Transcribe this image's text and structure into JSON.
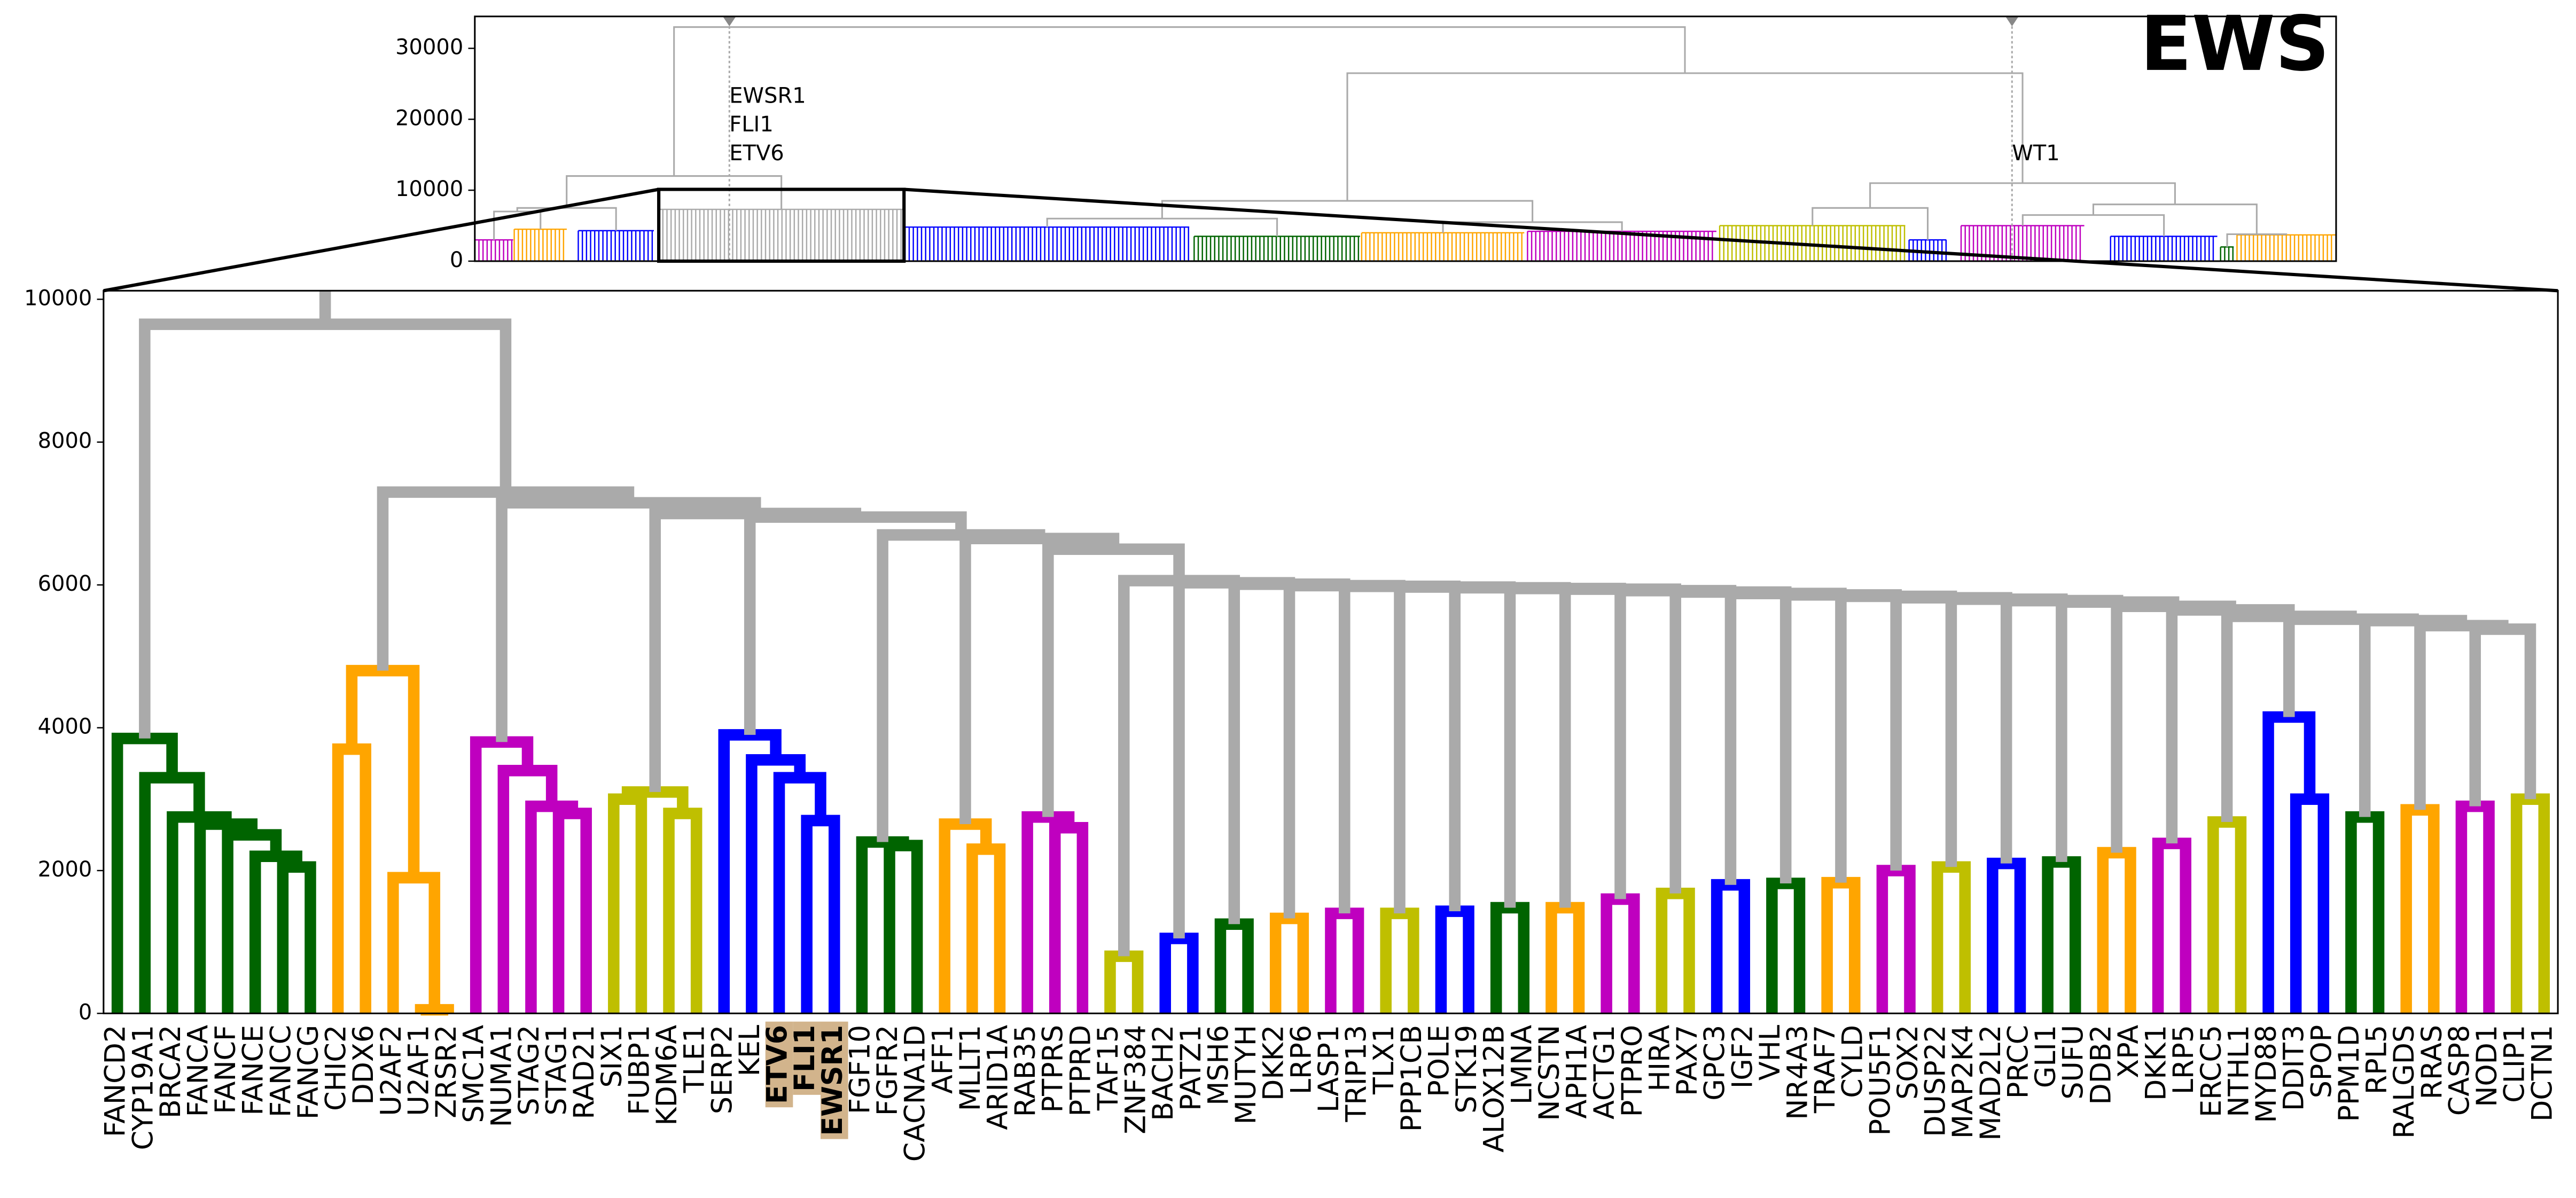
{
  "chart_data": [
    {
      "type": "dendrogram",
      "title": "EWS",
      "ylim": [
        0,
        34500
      ],
      "yticks": [
        0,
        10000,
        20000,
        30000
      ],
      "xlim": [
        0,
        340
      ],
      "link_color": "#aaaaaa",
      "blocks": [
        [
          [
            0,
            7
          ],
          3000,
          "#bf00bf"
        ],
        [
          [
            7.2,
            16.8
          ],
          4500,
          "#ffa500"
        ],
        [
          [
            18.9,
            32.7
          ],
          4300,
          "#0000ff"
        ],
        [
          [
            33.6,
            78.4
          ],
          7300,
          "#aaaaaa"
        ],
        [
          [
            78.6,
            130.5
          ],
          4800,
          "#0000ff"
        ],
        [
          [
            131.4,
            161.7
          ],
          3500,
          "#006400"
        ],
        [
          [
            162,
            191.7
          ],
          4000,
          "#ffa500"
        ],
        [
          [
            192.3,
            226.8
          ],
          4200,
          "#bf00bf"
        ],
        [
          [
            227.4,
            261.3
          ],
          5000,
          "#bfbf00"
        ],
        [
          [
            262,
            268.8
          ],
          3000,
          "#0000ff"
        ],
        [
          [
            271.5,
            294
          ],
          5000,
          "#bf00bf"
        ],
        [
          [
            298.8,
            318.3
          ],
          3500,
          "#0000ff"
        ],
        [
          [
            318.9,
            321.3
          ],
          2000,
          "#006400"
        ],
        [
          [
            321.9,
            339.9
          ],
          3700,
          "#ffa500"
        ]
      ],
      "merges": [
        [
          0,
          1,
          7000
        ],
        [
          14,
          2,
          7500
        ],
        [
          15,
          3,
          12000
        ],
        [
          4,
          5,
          6000
        ],
        [
          6,
          7,
          5500
        ],
        [
          17,
          18,
          8500
        ],
        [
          8,
          9,
          7500
        ],
        [
          10,
          11,
          6500
        ],
        [
          12,
          13,
          3800
        ],
        [
          21,
          22,
          8000
        ],
        [
          20,
          23,
          11000
        ],
        [
          19,
          24,
          26500
        ],
        [
          16,
          25,
          33000
        ]
      ],
      "markers": [
        {
          "x": 46.5,
          "labels": [
            "EWSR1",
            "FLI1",
            "ETV6"
          ]
        },
        {
          "x": 280.8,
          "labels": [
            "WT1"
          ]
        }
      ],
      "zoom_x": [
        33.6,
        78.4
      ]
    },
    {
      "type": "dendrogram",
      "ylim": [
        0,
        10120
      ],
      "yticks": [
        0,
        2000,
        4000,
        6000,
        8000,
        10000
      ],
      "leaves": [
        "FANCD2",
        "CYP19A1",
        "BRCA2",
        "FANCA",
        "FANCF",
        "FANCE",
        "FANCC",
        "FANCG",
        "CHIC2",
        "DDX6",
        "U2AF2",
        "U2AF1",
        "ZRSR2",
        "SMC1A",
        "NUMA1",
        "STAG2",
        "STAG1",
        "RAD21",
        "SIX1",
        "FUBP1",
        "KDM6A",
        "TLE1",
        "SERP2",
        "KEL",
        "ETV6",
        "FLI1",
        "EWSR1",
        "FGF10",
        "FGFR2",
        "CACNA1D",
        "AFF1",
        "MLLT1",
        "ARID1A",
        "RAB35",
        "PTPRS",
        "PTPRD",
        "TAF15",
        "ZNF384",
        "BACH2",
        "PATZ1",
        "MSH6",
        "MUTYH",
        "DKK2",
        "LRP6",
        "LASP1",
        "TRIP13",
        "TLX1",
        "PPP1CB",
        "POLE",
        "STK19",
        "ALOX12B",
        "LMNA",
        "NCSTN",
        "APH1A",
        "ACTG1",
        "PTPRO",
        "HIRA",
        "PAX7",
        "GPC3",
        "IGF2",
        "VHL",
        "NR4A3",
        "TRAF7",
        "CYLD",
        "POU5F1",
        "SOX2",
        "DUSP22",
        "MAP2K4",
        "MAD2L2",
        "PRCC",
        "GLI1",
        "SUFU",
        "DDB2",
        "XPA",
        "DKK1",
        "LRP5",
        "ERCC5",
        "NTHL1",
        "MYD88",
        "DDIT3",
        "SPOP",
        "PPM1D",
        "RPL5",
        "RALGDS",
        "RRAS",
        "CASP8",
        "NOD1",
        "CLIP1",
        "DCTN1"
      ],
      "highlight": {
        "leaves": [
          24,
          25,
          26
        ],
        "color": "#d2b48c"
      },
      "merges": [
        [
          6,
          7,
          2050,
          "#006400"
        ],
        [
          5,
          89,
          2200,
          "#006400"
        ],
        [
          4,
          90,
          2500,
          "#006400"
        ],
        [
          3,
          91,
          2650,
          "#006400"
        ],
        [
          2,
          92,
          2750,
          "#006400"
        ],
        [
          1,
          93,
          3300,
          "#006400"
        ],
        [
          0,
          94,
          3850,
          "#006400"
        ],
        [
          8,
          9,
          3700,
          "#ffa500"
        ],
        [
          11,
          12,
          50,
          "#ffa500"
        ],
        [
          10,
          97,
          1900,
          "#ffa500"
        ],
        [
          96,
          98,
          4800,
          "#ffa500"
        ],
        [
          16,
          17,
          2800,
          "#bf00bf"
        ],
        [
          15,
          100,
          2900,
          "#bf00bf"
        ],
        [
          14,
          101,
          3400,
          "#bf00bf"
        ],
        [
          13,
          102,
          3800,
          "#bf00bf"
        ],
        [
          18,
          19,
          3000,
          "#bfbf00"
        ],
        [
          20,
          21,
          2800,
          "#bfbf00"
        ],
        [
          104,
          105,
          3100,
          "#bfbf00"
        ],
        [
          25,
          26,
          2700,
          "#0000ff"
        ],
        [
          24,
          107,
          3300,
          "#0000ff"
        ],
        [
          23,
          108,
          3550,
          "#0000ff"
        ],
        [
          22,
          109,
          3900,
          "#0000ff"
        ],
        [
          28,
          29,
          2350,
          "#006400"
        ],
        [
          27,
          111,
          2400,
          "#006400"
        ],
        [
          31,
          32,
          2300,
          "#ffa500"
        ],
        [
          30,
          113,
          2650,
          "#ffa500"
        ],
        [
          34,
          35,
          2600,
          "#bf00bf"
        ],
        [
          33,
          115,
          2750,
          "#bf00bf"
        ],
        [
          36,
          37,
          800,
          "#bfbf00"
        ],
        [
          38,
          39,
          1050,
          "#0000ff"
        ],
        [
          40,
          41,
          1250,
          "#006400"
        ],
        [
          42,
          43,
          1330,
          "#ffa500"
        ],
        [
          44,
          45,
          1400,
          "#bf00bf"
        ],
        [
          46,
          47,
          1400,
          "#bfbf00"
        ],
        [
          48,
          49,
          1430,
          "#0000ff"
        ],
        [
          50,
          51,
          1480,
          "#006400"
        ],
        [
          52,
          53,
          1480,
          "#ffa500"
        ],
        [
          54,
          55,
          1600,
          "#bf00bf"
        ],
        [
          56,
          57,
          1680,
          "#bfbf00"
        ],
        [
          58,
          59,
          1800,
          "#0000ff"
        ],
        [
          60,
          61,
          1820,
          "#006400"
        ],
        [
          62,
          63,
          1830,
          "#ffa500"
        ],
        [
          64,
          65,
          2000,
          "#bf00bf"
        ],
        [
          66,
          67,
          2050,
          "#bfbf00"
        ],
        [
          68,
          69,
          2100,
          "#0000ff"
        ],
        [
          70,
          71,
          2120,
          "#006400"
        ],
        [
          72,
          73,
          2250,
          "#ffa500"
        ],
        [
          74,
          75,
          2380,
          "#bf00bf"
        ],
        [
          76,
          77,
          2680,
          "#bfbf00"
        ],
        [
          79,
          80,
          3000,
          "#0000ff"
        ],
        [
          78,
          138,
          4150,
          "#0000ff"
        ],
        [
          81,
          82,
          2750,
          "#006400"
        ],
        [
          83,
          84,
          2850,
          "#ffa500"
        ],
        [
          85,
          86,
          2900,
          "#bf00bf"
        ],
        [
          87,
          88,
          3000,
          "#bfbf00"
        ],
        [
          142,
          143,
          5380,
          "#aaaaaa"
        ],
        [
          141,
          144,
          5430,
          "#aaaaaa"
        ],
        [
          140,
          145,
          5500,
          "#aaaaaa"
        ],
        [
          139,
          146,
          5520,
          "#aaaaaa"
        ],
        [
          137,
          147,
          5560,
          "#aaaaaa"
        ],
        [
          136,
          148,
          5650,
          "#aaaaaa"
        ],
        [
          135,
          149,
          5700,
          "#aaaaaa"
        ],
        [
          134,
          150,
          5760,
          "#aaaaaa"
        ],
        [
          133,
          151,
          5780,
          "#aaaaaa"
        ],
        [
          132,
          152,
          5800,
          "#aaaaaa"
        ],
        [
          131,
          153,
          5820,
          "#aaaaaa"
        ],
        [
          130,
          154,
          5840,
          "#aaaaaa"
        ],
        [
          129,
          155,
          5860,
          "#aaaaaa"
        ],
        [
          128,
          156,
          5880,
          "#aaaaaa"
        ],
        [
          127,
          157,
          5900,
          "#aaaaaa"
        ],
        [
          126,
          158,
          5920,
          "#aaaaaa"
        ],
        [
          125,
          159,
          5940,
          "#aaaaaa"
        ],
        [
          124,
          160,
          5950,
          "#aaaaaa"
        ],
        [
          123,
          161,
          5960,
          "#aaaaaa"
        ],
        [
          122,
          162,
          5970,
          "#aaaaaa"
        ],
        [
          121,
          163,
          5980,
          "#aaaaaa"
        ],
        [
          120,
          164,
          5990,
          "#aaaaaa"
        ],
        [
          119,
          165,
          6010,
          "#aaaaaa"
        ],
        [
          118,
          166,
          6030,
          "#aaaaaa"
        ],
        [
          117,
          167,
          6060,
          "#aaaaaa"
        ],
        [
          116,
          168,
          6500,
          "#aaaaaa"
        ],
        [
          114,
          169,
          6650,
          "#aaaaaa"
        ],
        [
          112,
          170,
          6700,
          "#aaaaaa"
        ],
        [
          110,
          171,
          6950,
          "#aaaaaa"
        ],
        [
          106,
          172,
          7000,
          "#aaaaaa"
        ],
        [
          103,
          173,
          7150,
          "#aaaaaa"
        ],
        [
          99,
          174,
          7300,
          "#aaaaaa"
        ],
        [
          95,
          175,
          9650,
          "#aaaaaa"
        ]
      ]
    }
  ]
}
